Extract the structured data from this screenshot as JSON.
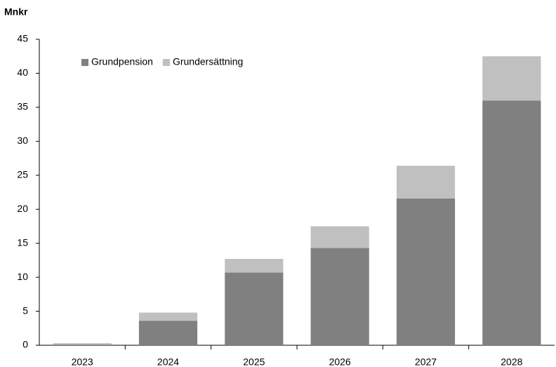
{
  "chart_data": {
    "type": "stacked_bar",
    "ylabel": "Mnkr",
    "categories": [
      "2023",
      "2024",
      "2025",
      "2026",
      "2027",
      "2028"
    ],
    "series": [
      {
        "name": "Grundpension",
        "color": "#808080",
        "values": [
          0.1,
          3.6,
          10.7,
          14.3,
          21.6,
          36.0
        ]
      },
      {
        "name": "Grundersättning",
        "color": "#c0c0c0",
        "values": [
          0.2,
          1.2,
          2.0,
          3.2,
          4.8,
          6.5
        ]
      }
    ],
    "ylim": [
      0,
      45
    ],
    "yticks": [
      0,
      5,
      10,
      15,
      20,
      25,
      30,
      35,
      40,
      45
    ],
    "grid": false,
    "legend": "upper left"
  }
}
